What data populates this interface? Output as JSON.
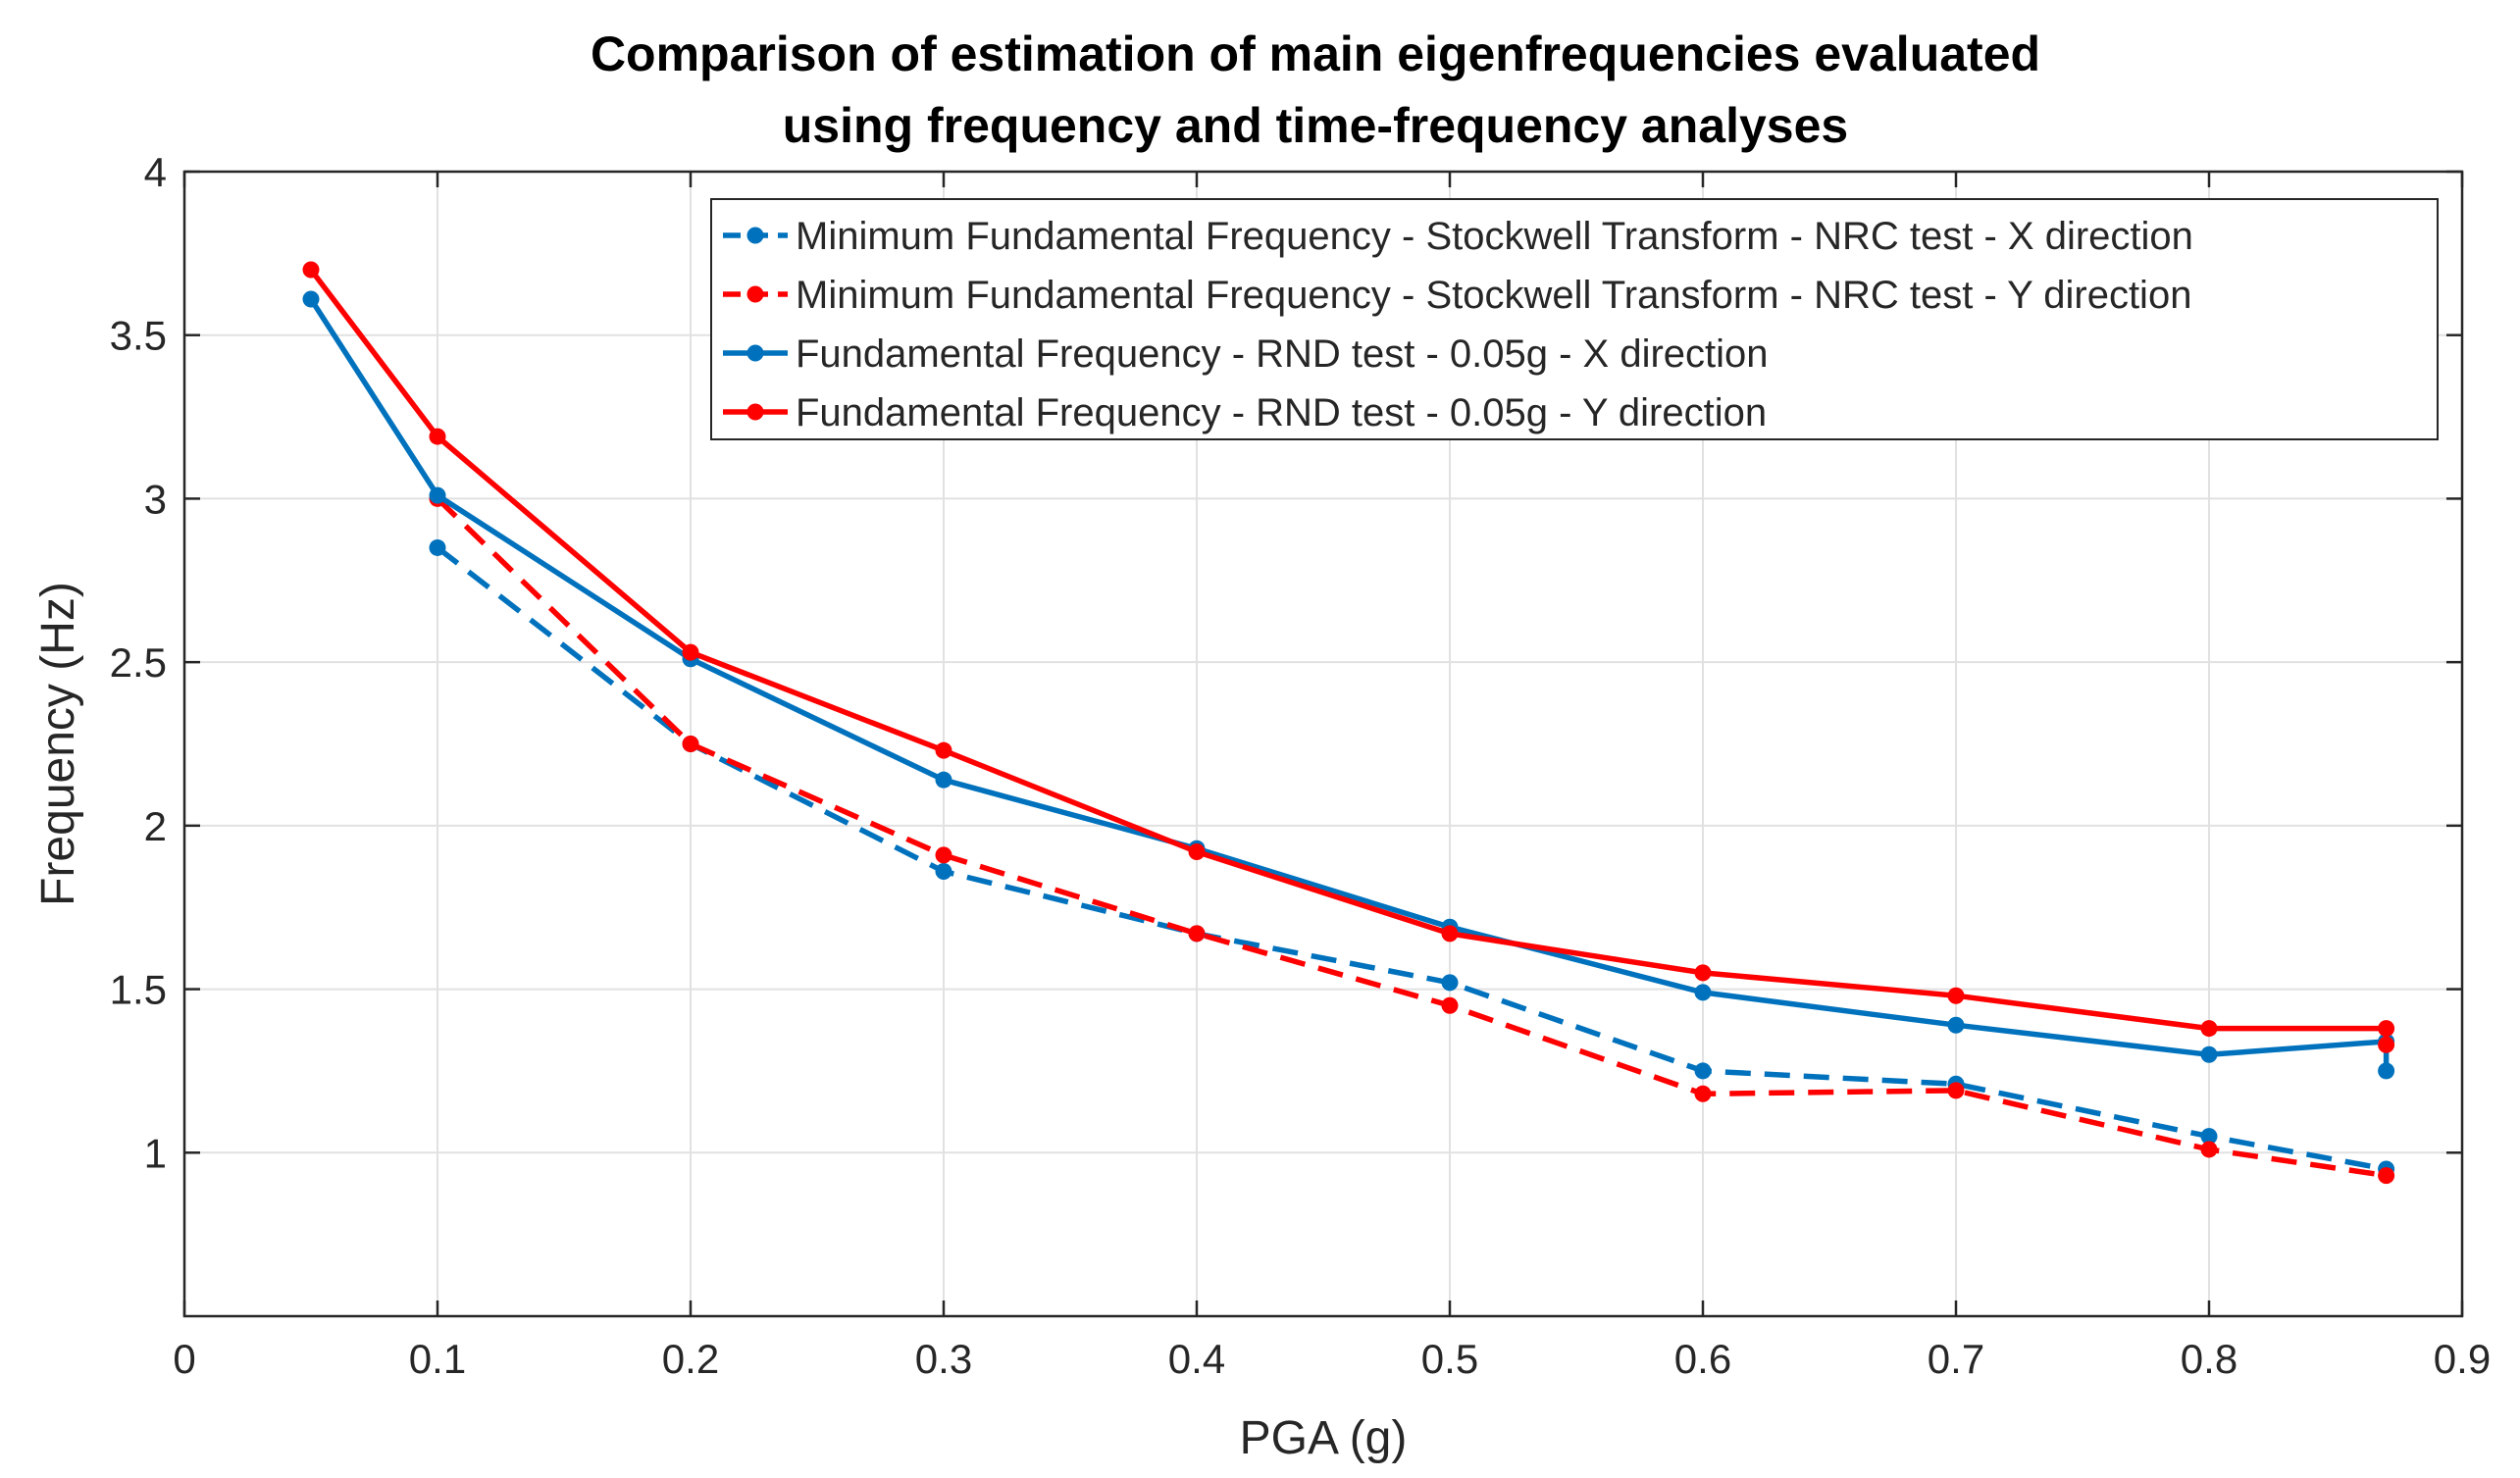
{
  "chart_data": {
    "type": "line",
    "title": [
      "Comparison of estimation of main eigenfrequencies evaluated",
      "using frequency and time-frequency analyses"
    ],
    "xlabel": "PGA (g)",
    "ylabel": "Frequency (Hz)",
    "xlim": [
      0,
      0.9
    ],
    "ylim": [
      0.5,
      4
    ],
    "xticks": [
      0,
      0.1,
      0.2,
      0.3,
      0.4,
      0.5,
      0.6,
      0.7,
      0.8,
      0.9
    ],
    "xtick_labels": [
      "0",
      "0.1",
      "0.2",
      "0.3",
      "0.4",
      "0.5",
      "0.6",
      "0.7",
      "0.8",
      "0.9"
    ],
    "yticks": [
      1,
      1.5,
      2,
      2.5,
      3,
      3.5,
      4
    ],
    "ytick_labels": [
      "1",
      "1.5",
      "2",
      "2.5",
      "3",
      "3.5",
      "4"
    ],
    "grid": true,
    "legend_position": "top-right",
    "series": [
      {
        "name": "Minimum Fundamental Frequency - Stockwell Transform - NRC test - X direction",
        "color": "#0072BD",
        "style": "dashed",
        "x": [
          0.1,
          0.2,
          0.3,
          0.4,
          0.5,
          0.6,
          0.7,
          0.8,
          0.87
        ],
        "y": [
          2.85,
          2.25,
          1.86,
          1.67,
          1.52,
          1.25,
          1.21,
          1.05,
          0.95
        ]
      },
      {
        "name": "Minimum Fundamental Frequency - Stockwell Transform - NRC test - Y direction",
        "color": "#FF0000",
        "style": "dashed",
        "x": [
          0.1,
          0.2,
          0.3,
          0.4,
          0.5,
          0.6,
          0.7,
          0.8,
          0.87
        ],
        "y": [
          3.0,
          2.25,
          1.91,
          1.67,
          1.45,
          1.18,
          1.19,
          1.01,
          0.93
        ]
      },
      {
        "name": "Fundamental Frequency - RND test - 0.05g - X direction",
        "color": "#0072BD",
        "style": "solid",
        "x": [
          0.05,
          0.1,
          0.2,
          0.3,
          0.4,
          0.5,
          0.6,
          0.7,
          0.8,
          0.87,
          0.87
        ],
        "y": [
          3.61,
          3.01,
          2.51,
          2.14,
          1.93,
          1.69,
          1.49,
          1.39,
          1.3,
          1.34,
          1.25
        ]
      },
      {
        "name": "Fundamental Frequency - RND test - 0.05g - Y direction",
        "color": "#FF0000",
        "style": "solid",
        "x": [
          0.05,
          0.1,
          0.2,
          0.3,
          0.4,
          0.5,
          0.6,
          0.7,
          0.8,
          0.87,
          0.87
        ],
        "y": [
          3.7,
          3.19,
          2.53,
          2.23,
          1.92,
          1.67,
          1.55,
          1.48,
          1.38,
          1.38,
          1.33
        ]
      }
    ]
  }
}
